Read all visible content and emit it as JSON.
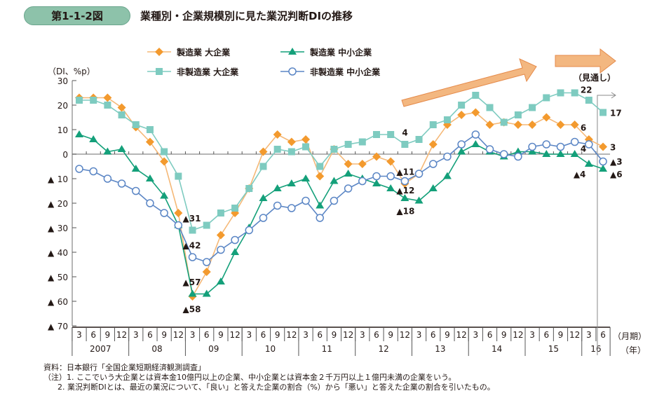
{
  "header": {
    "figure_number": "第1-1-2図",
    "title": "業種別・企業規模別に見た業況判断DIの推移"
  },
  "chart_data": {
    "type": "line",
    "title": "業種別・企業規模別に見た業況判断DIの推移",
    "ylabel": "（DI、%p）",
    "xlabel_month": "（月期）",
    "xlabel_year": "（年）",
    "ylim": [
      -70,
      30
    ],
    "yticks": [
      {
        "value": 30,
        "label": "30",
        "neg": false
      },
      {
        "value": 20,
        "label": "20",
        "neg": false
      },
      {
        "value": 10,
        "label": "10",
        "neg": false
      },
      {
        "value": 0,
        "label": "0",
        "neg": false
      },
      {
        "value": -10,
        "label": "10",
        "neg": true
      },
      {
        "value": -20,
        "label": "20",
        "neg": true
      },
      {
        "value": -30,
        "label": "30",
        "neg": true
      },
      {
        "value": -40,
        "label": "40",
        "neg": true
      },
      {
        "value": -50,
        "label": "50",
        "neg": true
      },
      {
        "value": -60,
        "label": "60",
        "neg": true
      },
      {
        "value": -70,
        "label": "70",
        "neg": true
      }
    ],
    "neg_marker": "▲",
    "months": [
      "3",
      "6",
      "9",
      "12",
      "3",
      "6",
      "9",
      "12",
      "3",
      "6",
      "9",
      "12",
      "3",
      "6",
      "9",
      "12",
      "3",
      "6",
      "9",
      "12",
      "3",
      "6",
      "9",
      "12",
      "3",
      "6",
      "9",
      "12",
      "3",
      "6",
      "9",
      "12",
      "3",
      "6",
      "9",
      "12",
      "3",
      "6"
    ],
    "years": [
      {
        "label": "2007",
        "start": 0,
        "count": 4
      },
      {
        "label": "08",
        "start": 4,
        "count": 4
      },
      {
        "label": "09",
        "start": 8,
        "count": 4
      },
      {
        "label": "10",
        "start": 12,
        "count": 4
      },
      {
        "label": "11",
        "start": 16,
        "count": 4
      },
      {
        "label": "12",
        "start": 20,
        "count": 4
      },
      {
        "label": "13",
        "start": 24,
        "count": 4
      },
      {
        "label": "14",
        "start": 28,
        "count": 4
      },
      {
        "label": "15",
        "start": 32,
        "count": 4
      },
      {
        "label": "16",
        "start": 36,
        "count": 2
      }
    ],
    "forecast_label": "（見通し）",
    "forecast_start_index": 37,
    "grid": false,
    "legend_position": "top",
    "series": [
      {
        "name": "製造業 大企業",
        "marker": "diamond",
        "color": "#f39a2e",
        "line_color": "#f5b877",
        "values": [
          23,
          23,
          23,
          19,
          11,
          5,
          -3,
          -24,
          -58,
          -48,
          -33,
          -24,
          -14,
          1,
          8,
          5,
          6,
          -9,
          2,
          -4,
          -4,
          -1,
          -3,
          -12,
          -8,
          4,
          12,
          16,
          17,
          12,
          13,
          12,
          12,
          15,
          12,
          12,
          6,
          3
        ]
      },
      {
        "name": "製造業 中小企業",
        "marker": "triangle",
        "color": "#14a07a",
        "line_color": "#14a07a",
        "values": [
          8,
          6,
          1,
          2,
          -6,
          -10,
          -17,
          -29,
          -57,
          -57,
          -52,
          -40,
          -30,
          -18,
          -14,
          -12,
          -10,
          -21,
          -11,
          -8,
          -10,
          -12,
          -14,
          -18,
          -19,
          -14,
          -9,
          1,
          4,
          1,
          -1,
          1,
          1,
          0,
          0,
          0,
          -4,
          -6
        ]
      },
      {
        "name": "非製造業 大企業",
        "marker": "square",
        "color": "#7ecbc0",
        "line_color": "#7ecbc0",
        "values": [
          22,
          22,
          20,
          16,
          12,
          10,
          1,
          -9,
          -31,
          -29,
          -24,
          -22,
          -14,
          -5,
          2,
          1,
          3,
          -5,
          2,
          4,
          5,
          8,
          8,
          4,
          6,
          12,
          14,
          20,
          24,
          19,
          13,
          16,
          19,
          23,
          25,
          25,
          22,
          17
        ]
      },
      {
        "name": "非製造業 中小企業",
        "marker": "circle-open",
        "color": "#5b86c5",
        "line_color": "#5b86c5",
        "values": [
          -6,
          -7,
          -10,
          -12,
          -15,
          -20,
          -24,
          -29,
          -42,
          -44,
          -39,
          -35,
          -31,
          -26,
          -21,
          -22,
          -19,
          -26,
          -19,
          -14,
          -11,
          -9,
          -9,
          -11,
          -8,
          -4,
          -1,
          4,
          8,
          2,
          0,
          -1,
          3,
          4,
          3,
          5,
          4,
          -3
        ]
      }
    ],
    "annotations": [
      {
        "text": "▲31",
        "index": 8,
        "value": -26
      },
      {
        "text": "▲42",
        "index": 8,
        "value": -37
      },
      {
        "text": "▲57",
        "index": 8,
        "value": -52
      },
      {
        "text": "▲58",
        "index": 8,
        "value": -63
      },
      {
        "text": "4",
        "index": 23,
        "value": 9
      },
      {
        "text": "▲11",
        "index": 23,
        "value": -7
      },
      {
        "text": "▲12",
        "index": 23,
        "value": -14.5
      },
      {
        "text": "▲18",
        "index": 23,
        "value": -23
      },
      {
        "text": "22",
        "index": 36,
        "value": 26.5
      },
      {
        "text": "6",
        "index": 36,
        "value": 11
      },
      {
        "text": "4",
        "index": 36,
        "value": 2.5
      },
      {
        "text": "▲4",
        "index": 36,
        "value": -8
      },
      {
        "text": "17",
        "index": 37,
        "value": 17
      },
      {
        "text": "3",
        "index": 37,
        "value": 3
      },
      {
        "text": "▲3",
        "index": 37,
        "value": -2.8
      },
      {
        "text": "▲6",
        "index": 37,
        "value": -8
      }
    ]
  },
  "notes": {
    "source": "資料：日本銀行「全国企業短期経済観測調査」",
    "note1": "（注）1. ここでいう大企業とは資本金10億円以上の企業、中小企業とは資本金２千万円以上１億円未満の企業をいう。",
    "note2": "2. 業況判断DIとは、最近の業況について、「良い」と答えた企業の割合（%）から「悪い」と答えた企業の割合を引いたもの。"
  }
}
